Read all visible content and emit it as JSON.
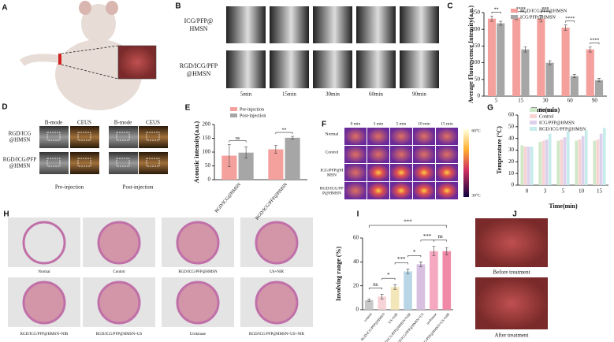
{
  "figure": {
    "panel_labels": [
      "A",
      "B",
      "C",
      "D",
      "E",
      "F",
      "G",
      "H",
      "I",
      "J"
    ],
    "b_rows": [
      [
        "ICG/PFP@",
        "HMSN"
      ],
      [
        "RGD/ICG/PFP",
        "@HMSN"
      ]
    ],
    "b_times": [
      "5min",
      "15min",
      "30min",
      "60min",
      "90min"
    ],
    "d_cols": [
      "B-mode",
      "CEUS",
      "B-mode",
      "CEUS"
    ],
    "d_rows": [
      [
        "RGD/ICG",
        "@HMSN"
      ],
      [
        "RGD/ICG/PFP",
        "@HMSN"
      ]
    ],
    "d_phases": [
      "Pre-injection",
      "Post-injection"
    ],
    "f_times": [
      "0 min",
      "3 min",
      "5 min",
      "10 min",
      "15 min"
    ],
    "f_rows": [
      [
        "Normal"
      ],
      [
        "Control"
      ],
      [
        "ICG/PFP@H",
        "MSN"
      ],
      [
        "RGD/ICG/PF",
        "P@HMSN"
      ]
    ],
    "f_scale": [
      "60°C",
      "30°C"
    ],
    "h_captions": [
      "Normal",
      "Control",
      "RGD/ICG/PFP@HMSN",
      "US+NIR",
      "RGD/ICG/PFP@HMSN+NIR",
      "RGD/ICG/PFP@HMSN+US",
      "Urokinase",
      "RGD/ICG/PFP@HMSN+US+NIR"
    ],
    "j_captions": [
      "Before treatment",
      "After treatment"
    ]
  },
  "chart_data": [
    {
      "type": "bar",
      "y_label": "Average Fluorescence Intensity(a.u.)",
      "x_label": "Time(min)",
      "categories": [
        "5",
        "15",
        "30",
        "60",
        "90"
      ],
      "series": [
        {
          "name": "RGD/ICG/PFP@HMSN",
          "color": "#f4a09c",
          "values": [
            232,
            235,
            232,
            205,
            140
          ],
          "errors": [
            8,
            6,
            10,
            8,
            8
          ]
        },
        {
          "name": "ICG/PFP@HMSN",
          "color": "#a6a6a6",
          "values": [
            218,
            140,
            100,
            60,
            48
          ],
          "errors": [
            6,
            8,
            6,
            5,
            5
          ]
        }
      ],
      "annotations": [
        "**",
        "****",
        "***",
        "****",
        "****"
      ],
      "ylim": [
        0,
        250
      ],
      "yticks": [
        0,
        50,
        100,
        150,
        200,
        250
      ]
    },
    {
      "type": "bar",
      "y_label": "Acoustic intensity(a.u.)",
      "categories": [
        "RGD/ICG@HMSN",
        "RGD/ICG/PFP@HMSN"
      ],
      "series": [
        {
          "name": "Pre-injection",
          "color": "#f4a09c",
          "values": [
            87,
            110
          ],
          "errors": [
            40,
            15
          ]
        },
        {
          "name": "Post-injection",
          "color": "#a6a6a6",
          "values": [
            98,
            152
          ],
          "errors": [
            20,
            5
          ]
        }
      ],
      "annotations": [
        "ns",
        "**"
      ],
      "ylim": [
        0,
        200
      ],
      "yticks": [
        0,
        50,
        100,
        150,
        200
      ]
    },
    {
      "type": "bar",
      "y_label": "Temperature (°C)",
      "x_label": "Time(min)",
      "categories": [
        "0",
        "3",
        "5",
        "10",
        "15"
      ],
      "series": [
        {
          "name": "Normal",
          "color": "#cfe8c8",
          "values": [
            34,
            37,
            38,
            38,
            38
          ]
        },
        {
          "name": "Control",
          "color": "#f7d3d3",
          "values": [
            33,
            38,
            39,
            39,
            39
          ]
        },
        {
          "name": "ICG/PFP@HMSN",
          "color": "#ddd0ec",
          "values": [
            33,
            39,
            41,
            42,
            44
          ]
        },
        {
          "name": "RGD/ICG/PFP@HMSN",
          "color": "#c6ecec",
          "values": [
            33,
            44,
            46,
            47,
            49
          ]
        }
      ],
      "ylim": [
        0,
        60
      ],
      "yticks": [
        0,
        10,
        20,
        30,
        40,
        50,
        60
      ]
    },
    {
      "type": "bar",
      "y_label": "Involving range (%)",
      "categories": [
        "control",
        "RGD/ICG/PFP@HMSN",
        "US+NIR",
        "RGD/ICG/PFP@HMSN+NIR",
        "RGD/ICG/PFP@HMSN+US",
        "urokinase",
        "RGD/ICG/PFP@HMSN+US+NIR"
      ],
      "series": [
        {
          "colors": [
            "#c8c8c8",
            "#f6d3d6",
            "#f3e6b8",
            "#b9d6e6",
            "#d8c0e0",
            "#f6a8c0",
            "#f08aa8"
          ],
          "values": [
            8,
            11,
            19,
            32,
            38,
            49,
            49
          ],
          "errors": [
            1,
            2,
            2,
            2,
            2,
            4,
            3
          ]
        }
      ],
      "annotations": [
        "ns",
        "*",
        "***",
        "*",
        "***",
        "ns",
        "***"
      ],
      "ylim": [
        0,
        60
      ],
      "yticks": [
        0,
        20,
        40,
        60
      ]
    }
  ]
}
